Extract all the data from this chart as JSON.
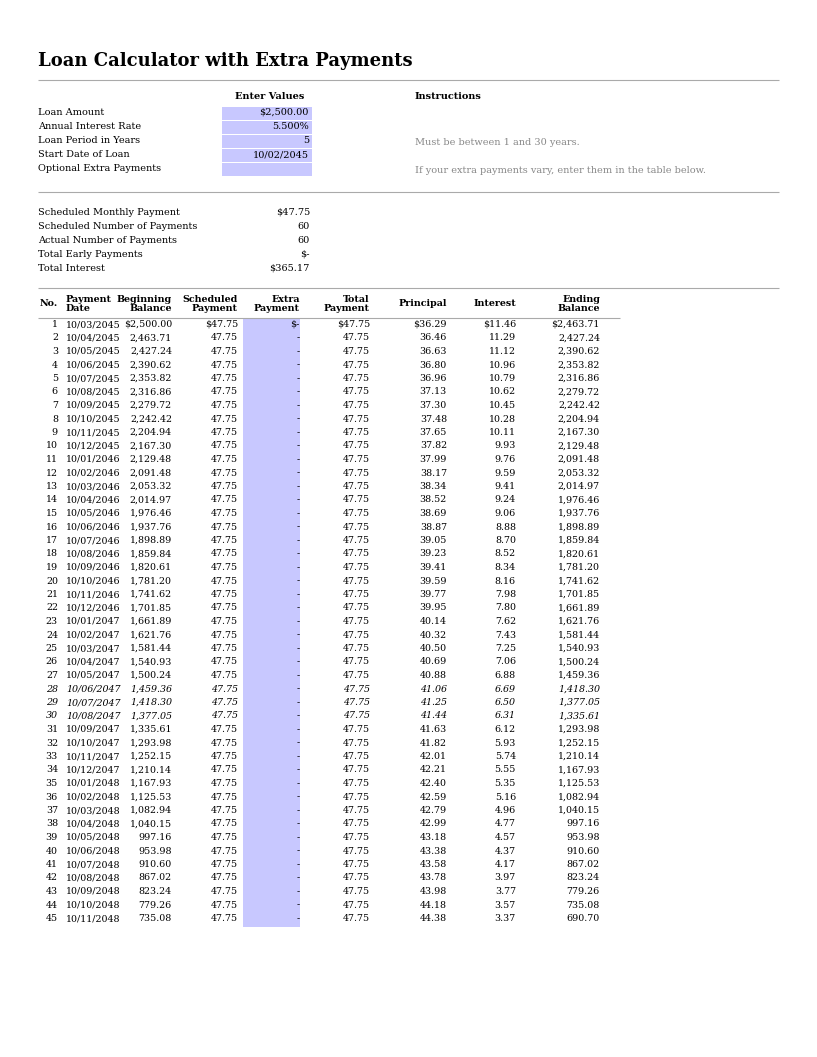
{
  "title": "Loan Calculator with Extra Payments",
  "loan_amount": "$2,500.00",
  "annual_interest_rate": "5.500%",
  "loan_period_years": "5",
  "start_date": "10/02/2045",
  "optional_extra_payments": "",
  "instructions_title": "Instructions",
  "instruction1": "Must be between 1 and 30 years.",
  "instruction2": "If your extra payments vary, enter them in the table below.",
  "scheduled_monthly_payment": "$47.75",
  "scheduled_num_payments": "60",
  "actual_num_payments": "60",
  "total_early_payments": "$-",
  "total_interest": "$365.17",
  "table_data": [
    [
      1,
      "10/03/2045",
      "$2,500.00",
      "$47.75",
      "$-",
      "$47.75",
      "$36.29",
      "$11.46",
      "$2,463.71"
    ],
    [
      2,
      "10/04/2045",
      "2,463.71",
      "47.75",
      "-",
      "47.75",
      "36.46",
      "11.29",
      "2,427.24"
    ],
    [
      3,
      "10/05/2045",
      "2,427.24",
      "47.75",
      "-",
      "47.75",
      "36.63",
      "11.12",
      "2,390.62"
    ],
    [
      4,
      "10/06/2045",
      "2,390.62",
      "47.75",
      "-",
      "47.75",
      "36.80",
      "10.96",
      "2,353.82"
    ],
    [
      5,
      "10/07/2045",
      "2,353.82",
      "47.75",
      "-",
      "47.75",
      "36.96",
      "10.79",
      "2,316.86"
    ],
    [
      6,
      "10/08/2045",
      "2,316.86",
      "47.75",
      "-",
      "47.75",
      "37.13",
      "10.62",
      "2,279.72"
    ],
    [
      7,
      "10/09/2045",
      "2,279.72",
      "47.75",
      "-",
      "47.75",
      "37.30",
      "10.45",
      "2,242.42"
    ],
    [
      8,
      "10/10/2045",
      "2,242.42",
      "47.75",
      "-",
      "47.75",
      "37.48",
      "10.28",
      "2,204.94"
    ],
    [
      9,
      "10/11/2045",
      "2,204.94",
      "47.75",
      "-",
      "47.75",
      "37.65",
      "10.11",
      "2,167.30"
    ],
    [
      10,
      "10/12/2045",
      "2,167.30",
      "47.75",
      "-",
      "47.75",
      "37.82",
      "9.93",
      "2,129.48"
    ],
    [
      11,
      "10/01/2046",
      "2,129.48",
      "47.75",
      "-",
      "47.75",
      "37.99",
      "9.76",
      "2,091.48"
    ],
    [
      12,
      "10/02/2046",
      "2,091.48",
      "47.75",
      "-",
      "47.75",
      "38.17",
      "9.59",
      "2,053.32"
    ],
    [
      13,
      "10/03/2046",
      "2,053.32",
      "47.75",
      "-",
      "47.75",
      "38.34",
      "9.41",
      "2,014.97"
    ],
    [
      14,
      "10/04/2046",
      "2,014.97",
      "47.75",
      "-",
      "47.75",
      "38.52",
      "9.24",
      "1,976.46"
    ],
    [
      15,
      "10/05/2046",
      "1,976.46",
      "47.75",
      "-",
      "47.75",
      "38.69",
      "9.06",
      "1,937.76"
    ],
    [
      16,
      "10/06/2046",
      "1,937.76",
      "47.75",
      "-",
      "47.75",
      "38.87",
      "8.88",
      "1,898.89"
    ],
    [
      17,
      "10/07/2046",
      "1,898.89",
      "47.75",
      "-",
      "47.75",
      "39.05",
      "8.70",
      "1,859.84"
    ],
    [
      18,
      "10/08/2046",
      "1,859.84",
      "47.75",
      "-",
      "47.75",
      "39.23",
      "8.52",
      "1,820.61"
    ],
    [
      19,
      "10/09/2046",
      "1,820.61",
      "47.75",
      "-",
      "47.75",
      "39.41",
      "8.34",
      "1,781.20"
    ],
    [
      20,
      "10/10/2046",
      "1,781.20",
      "47.75",
      "-",
      "47.75",
      "39.59",
      "8.16",
      "1,741.62"
    ],
    [
      21,
      "10/11/2046",
      "1,741.62",
      "47.75",
      "-",
      "47.75",
      "39.77",
      "7.98",
      "1,701.85"
    ],
    [
      22,
      "10/12/2046",
      "1,701.85",
      "47.75",
      "-",
      "47.75",
      "39.95",
      "7.80",
      "1,661.89"
    ],
    [
      23,
      "10/01/2047",
      "1,661.89",
      "47.75",
      "-",
      "47.75",
      "40.14",
      "7.62",
      "1,621.76"
    ],
    [
      24,
      "10/02/2047",
      "1,621.76",
      "47.75",
      "-",
      "47.75",
      "40.32",
      "7.43",
      "1,581.44"
    ],
    [
      25,
      "10/03/2047",
      "1,581.44",
      "47.75",
      "-",
      "47.75",
      "40.50",
      "7.25",
      "1,540.93"
    ],
    [
      26,
      "10/04/2047",
      "1,540.93",
      "47.75",
      "-",
      "47.75",
      "40.69",
      "7.06",
      "1,500.24"
    ],
    [
      27,
      "10/05/2047",
      "1,500.24",
      "47.75",
      "-",
      "47.75",
      "40.88",
      "6.88",
      "1,459.36"
    ],
    [
      28,
      "10/06/2047",
      "1,459.36",
      "47.75",
      "-",
      "47.75",
      "41.06",
      "6.69",
      "1,418.30"
    ],
    [
      29,
      "10/07/2047",
      "1,418.30",
      "47.75",
      "-",
      "47.75",
      "41.25",
      "6.50",
      "1,377.05"
    ],
    [
      30,
      "10/08/2047",
      "1,377.05",
      "47.75",
      "-",
      "47.75",
      "41.44",
      "6.31",
      "1,335.61"
    ],
    [
      31,
      "10/09/2047",
      "1,335.61",
      "47.75",
      "-",
      "47.75",
      "41.63",
      "6.12",
      "1,293.98"
    ],
    [
      32,
      "10/10/2047",
      "1,293.98",
      "47.75",
      "-",
      "47.75",
      "41.82",
      "5.93",
      "1,252.15"
    ],
    [
      33,
      "10/11/2047",
      "1,252.15",
      "47.75",
      "-",
      "47.75",
      "42.01",
      "5.74",
      "1,210.14"
    ],
    [
      34,
      "10/12/2047",
      "1,210.14",
      "47.75",
      "-",
      "47.75",
      "42.21",
      "5.55",
      "1,167.93"
    ],
    [
      35,
      "10/01/2048",
      "1,167.93",
      "47.75",
      "-",
      "47.75",
      "42.40",
      "5.35",
      "1,125.53"
    ],
    [
      36,
      "10/02/2048",
      "1,125.53",
      "47.75",
      "-",
      "47.75",
      "42.59",
      "5.16",
      "1,082.94"
    ],
    [
      37,
      "10/03/2048",
      "1,082.94",
      "47.75",
      "-",
      "47.75",
      "42.79",
      "4.96",
      "1,040.15"
    ],
    [
      38,
      "10/04/2048",
      "1,040.15",
      "47.75",
      "-",
      "47.75",
      "42.99",
      "4.77",
      "997.16"
    ],
    [
      39,
      "10/05/2048",
      "997.16",
      "47.75",
      "-",
      "47.75",
      "43.18",
      "4.57",
      "953.98"
    ],
    [
      40,
      "10/06/2048",
      "953.98",
      "47.75",
      "-",
      "47.75",
      "43.38",
      "4.37",
      "910.60"
    ],
    [
      41,
      "10/07/2048",
      "910.60",
      "47.75",
      "-",
      "47.75",
      "43.58",
      "4.17",
      "867.02"
    ],
    [
      42,
      "10/08/2048",
      "867.02",
      "47.75",
      "-",
      "47.75",
      "43.78",
      "3.97",
      "823.24"
    ],
    [
      43,
      "10/09/2048",
      "823.24",
      "47.75",
      "-",
      "47.75",
      "43.98",
      "3.77",
      "779.26"
    ],
    [
      44,
      "10/10/2048",
      "779.26",
      "47.75",
      "-",
      "47.75",
      "44.18",
      "3.57",
      "735.08"
    ],
    [
      45,
      "10/11/2048",
      "735.08",
      "47.75",
      "-",
      "47.75",
      "44.38",
      "3.37",
      "690.70"
    ]
  ],
  "input_bg_color": "#c8c8ff",
  "page_bg": "#ffffff",
  "font_color": "#000000",
  "gray_text_color": "#888888",
  "extra_col_bg": "#c8c8ff",
  "italic_rows": [
    27,
    28,
    29
  ],
  "title_fontsize": 13,
  "body_fontsize": 7.0,
  "small_fontsize": 6.8
}
